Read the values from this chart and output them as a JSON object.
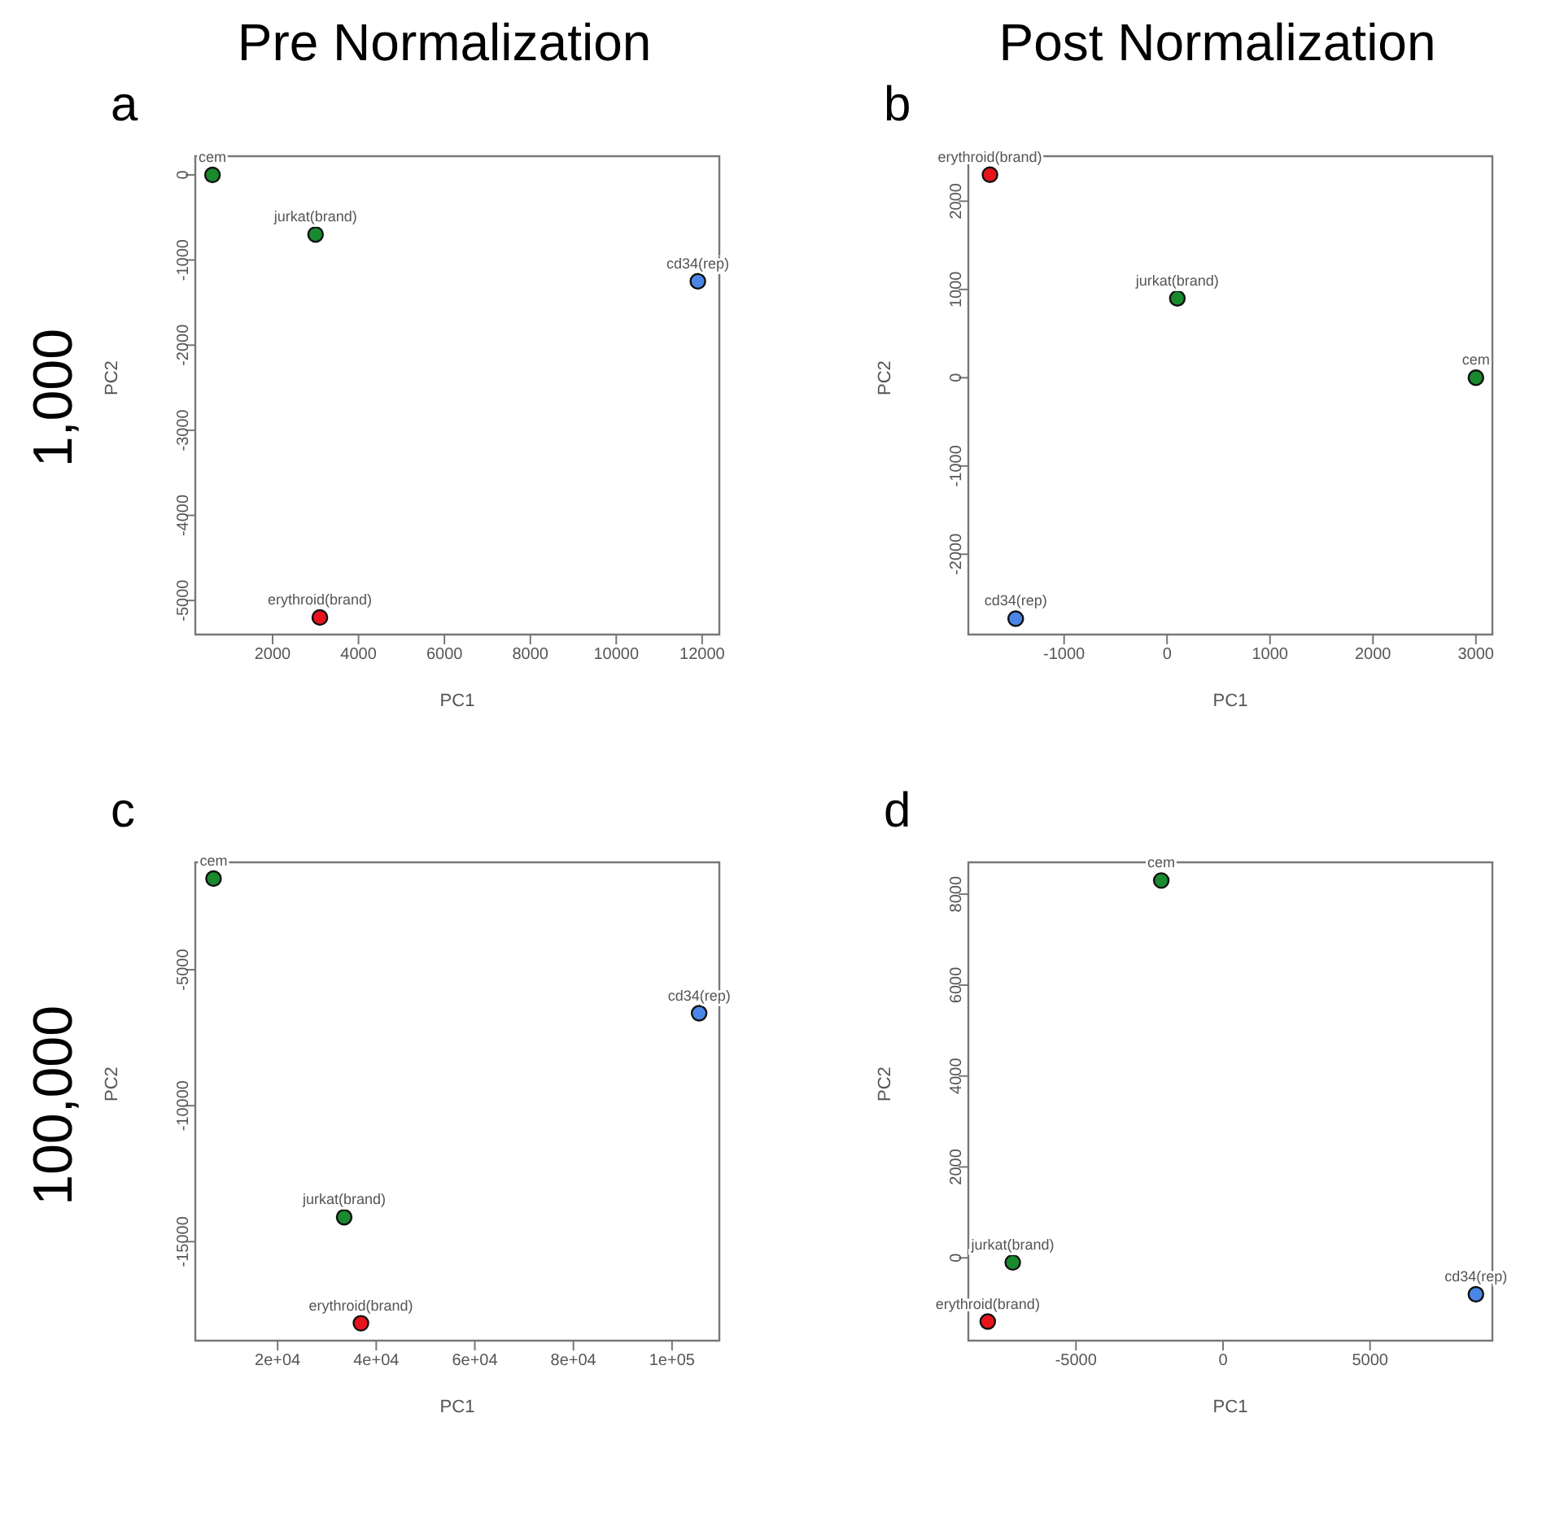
{
  "chart_data": [
    {
      "type": "scatter",
      "subtitle": "Pre Normalization",
      "title": "a",
      "xlabel": "PC1",
      "ylabel": "PC2",
      "marker": "circle",
      "x": [
        600,
        3000,
        11900,
        3100
      ],
      "values": [
        0,
        -700,
        -1250,
        -5200
      ],
      "colors": [
        "#1a8a2e",
        "#1a8a2e",
        "#4a86e8",
        "#e8141c"
      ],
      "xlim": [
        200,
        12400
      ],
      "ylim": [
        -5400,
        220
      ],
      "xticks": [
        2000,
        4000,
        6000,
        8000,
        10000,
        12000
      ],
      "yticks": [
        -5000,
        -4000,
        -3000,
        -2000,
        -1000,
        0
      ],
      "annotations": [
        "1,000",
        {
          "text": "cem",
          "x": 600,
          "y": 0
        },
        {
          "text": "jurkat(brand)",
          "x": 3000,
          "y": -700
        },
        {
          "text": "cd34(rep)",
          "x": 11900,
          "y": -1250
        },
        {
          "text": "erythroid(brand)",
          "x": 3100,
          "y": -5200
        }
      ]
    },
    {
      "type": "scatter",
      "subtitle": "Post Normalization",
      "title": "b",
      "xlabel": "PC1",
      "ylabel": "PC2",
      "marker": "circle",
      "x": [
        -1720,
        100,
        3000,
        -1470
      ],
      "values": [
        2300,
        900,
        0,
        -2730
      ],
      "colors": [
        "#e8141c",
        "#1a8a2e",
        "#1a8a2e",
        "#4a86e8"
      ],
      "xlim": [
        -1930,
        3160
      ],
      "ylim": [
        -2910,
        2510
      ],
      "xticks": [
        -1000,
        0,
        1000,
        2000,
        3000
      ],
      "yticks": [
        -2000,
        -1000,
        0,
        1000,
        2000
      ],
      "annotations": [
        {
          "text": "erythroid(brand)",
          "x": -1720,
          "y": 2300
        },
        {
          "text": "jurkat(brand)",
          "x": 100,
          "y": 900
        },
        {
          "text": "cem",
          "x": 3000,
          "y": 0
        },
        {
          "text": "cd34(rep)",
          "x": -1470,
          "y": -2730
        }
      ]
    },
    {
      "type": "scatter",
      "title": "c",
      "xlabel": "PC1",
      "ylabel": "PC2",
      "marker": "circle",
      "x": [
        7000,
        105500,
        33500,
        36900
      ],
      "values": [
        -1650,
        -6600,
        -14100,
        -18000
      ],
      "colors": [
        "#1a8a2e",
        "#4a86e8",
        "#1a8a2e",
        "#e8141c"
      ],
      "xlim": [
        3300,
        109600
      ],
      "ylim": [
        -18640,
        -1050
      ],
      "xticks": [
        {
          "value": 20000,
          "label": "2e+04"
        },
        {
          "value": 40000,
          "label": "4e+04"
        },
        {
          "value": 60000,
          "label": "6e+04"
        },
        {
          "value": 80000,
          "label": "8e+04"
        },
        {
          "value": 100000,
          "label": "1e+05"
        }
      ],
      "yticks": [
        -15000,
        -10000,
        -5000
      ],
      "annotations": [
        "100,000",
        {
          "text": "cem",
          "x": 7000,
          "y": -1650
        },
        {
          "text": "cd34(rep)",
          "x": 105500,
          "y": -6600
        },
        {
          "text": "jurkat(brand)",
          "x": 33500,
          "y": -14100
        },
        {
          "text": "erythroid(brand)",
          "x": 36900,
          "y": -18000
        }
      ]
    },
    {
      "type": "scatter",
      "title": "d",
      "xlabel": "PC1",
      "ylabel": "PC2",
      "marker": "circle",
      "x": [
        -2100,
        -7150,
        -8000,
        8600
      ],
      "values": [
        8300,
        -100,
        -1400,
        -800
      ],
      "colors": [
        "#1a8a2e",
        "#1a8a2e",
        "#e8141c",
        "#4a86e8"
      ],
      "xlim": [
        -8660,
        9160
      ],
      "ylim": [
        -1820,
        8700
      ],
      "xticks": [
        -5000,
        0,
        5000
      ],
      "yticks": [
        0,
        2000,
        4000,
        6000,
        8000
      ],
      "annotations": [
        {
          "text": "cem",
          "x": -2100,
          "y": 8300
        },
        {
          "text": "jurkat(brand)",
          "x": -7150,
          "y": -100
        },
        {
          "text": "erythroid(brand)",
          "x": -8000,
          "y": -1400
        },
        {
          "text": "cd34(rep)",
          "x": 8600,
          "y": -800
        }
      ]
    }
  ]
}
